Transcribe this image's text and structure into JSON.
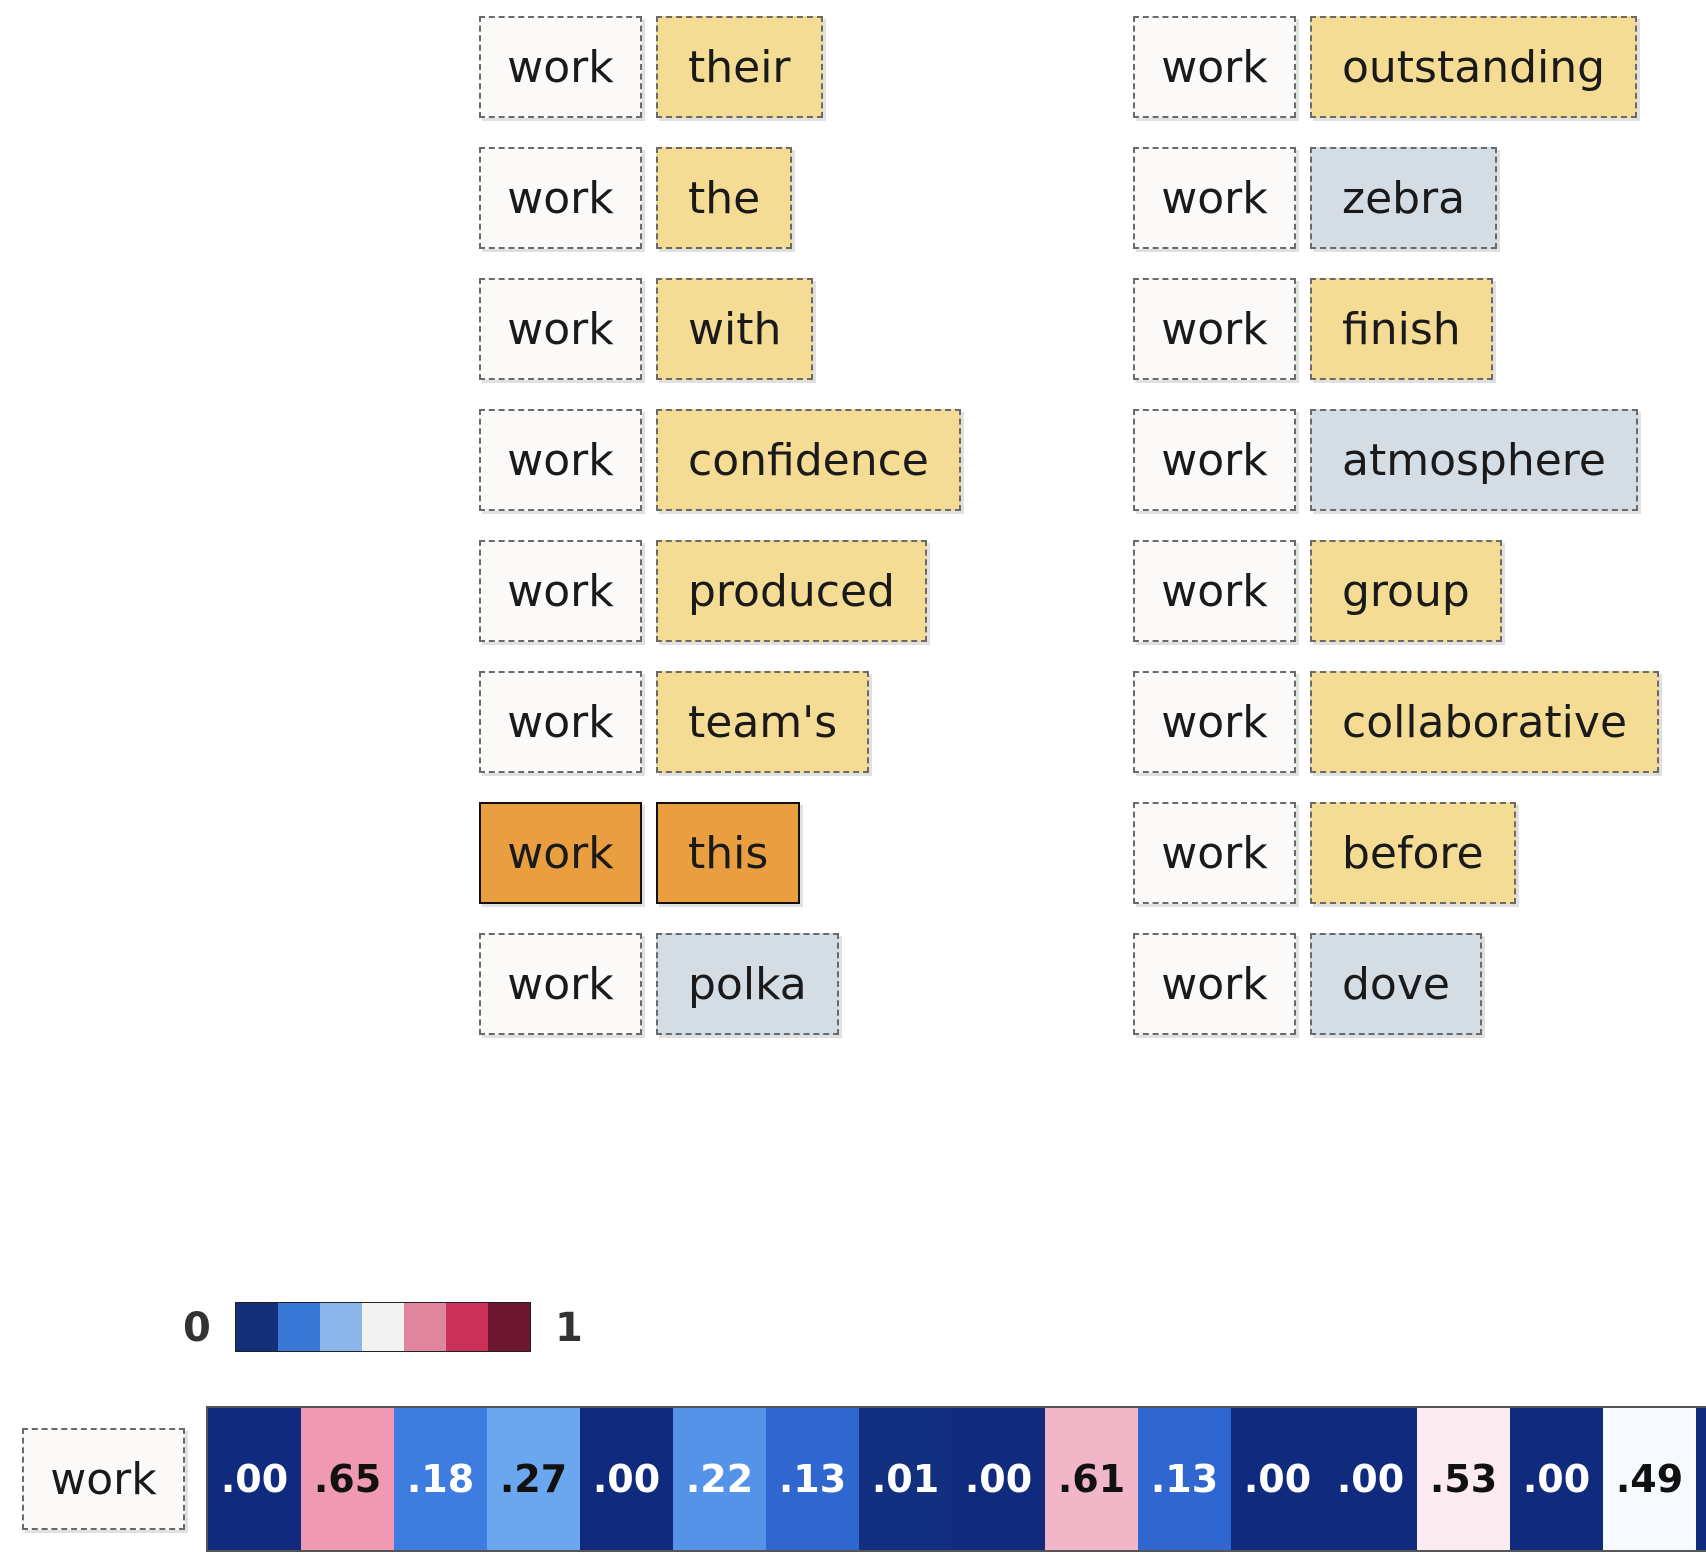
{
  "pairs": [
    {
      "query": "work",
      "key": "their",
      "tone": "warm"
    },
    {
      "query": "work",
      "key": "the",
      "tone": "warm"
    },
    {
      "query": "work",
      "key": "with",
      "tone": "warm"
    },
    {
      "query": "work",
      "key": "confidence",
      "tone": "warm"
    },
    {
      "query": "work",
      "key": "produced",
      "tone": "warm"
    },
    {
      "query": "work",
      "key": "team's",
      "tone": "warm"
    },
    {
      "query": "work",
      "key": "this",
      "tone": "selected"
    },
    {
      "query": "work",
      "key": "polka",
      "tone": "cool"
    },
    {
      "query": "work",
      "key": "outstanding",
      "tone": "warm"
    },
    {
      "query": "work",
      "key": "zebra",
      "tone": "cool"
    },
    {
      "query": "work",
      "key": "finish",
      "tone": "warm"
    },
    {
      "query": "work",
      "key": "atmosphere",
      "tone": "cool"
    },
    {
      "query": "work",
      "key": "group",
      "tone": "warm"
    },
    {
      "query": "work",
      "key": "collaborative",
      "tone": "warm"
    },
    {
      "query": "work",
      "key": "before",
      "tone": "warm"
    },
    {
      "query": "work",
      "key": "dove",
      "tone": "cool"
    }
  ],
  "colors": {
    "warm": "#f5dc94",
    "cool": "#d5dde4",
    "selected": "#e99e3f",
    "query_bg": "#fbfaf8"
  },
  "legend": {
    "min_label": "0",
    "max_label": "1",
    "scale": [
      "#14307a",
      "#3a78d6",
      "#8ab6ea",
      "#f2f2f2",
      "#e0859e",
      "#c9315b",
      "#6e1530"
    ]
  },
  "heatmap": {
    "query": "work",
    "values": [
      {
        "label": ".00",
        "bg": "#102b7d",
        "fg": "#ffffff"
      },
      {
        "label": ".65",
        "bg": "#ef9ab2",
        "fg": "#111111"
      },
      {
        "label": ".18",
        "bg": "#3e7ddf",
        "fg": "#ffffff"
      },
      {
        "label": ".27",
        "bg": "#6ba7ee",
        "fg": "#111111"
      },
      {
        "label": ".00",
        "bg": "#102b7d",
        "fg": "#ffffff"
      },
      {
        "label": ".22",
        "bg": "#5593e8",
        "fg": "#ffffff"
      },
      {
        "label": ".13",
        "bg": "#2f66cf",
        "fg": "#ffffff"
      },
      {
        "label": ".01",
        "bg": "#12307f",
        "fg": "#ffffff"
      },
      {
        "label": ".00",
        "bg": "#102b7d",
        "fg": "#ffffff"
      },
      {
        "label": ".61",
        "bg": "#f1b6c8",
        "fg": "#111111"
      },
      {
        "label": ".13",
        "bg": "#2f66cf",
        "fg": "#ffffff"
      },
      {
        "label": ".00",
        "bg": "#102b7d",
        "fg": "#ffffff"
      },
      {
        "label": ".00",
        "bg": "#102b7d",
        "fg": "#ffffff"
      },
      {
        "label": ".53",
        "bg": "#fcebf1",
        "fg": "#111111"
      },
      {
        "label": ".00",
        "bg": "#102b7d",
        "fg": "#ffffff"
      },
      {
        "label": ".49",
        "bg": "#f6f9fd",
        "fg": "#111111"
      },
      {
        "label": "",
        "bg": "#102b7d",
        "fg": "#ffffff"
      }
    ]
  }
}
